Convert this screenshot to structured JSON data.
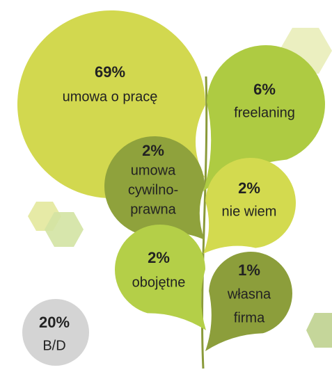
{
  "items": [
    {
      "value": "69%",
      "lines": [
        "umowa o pracę"
      ]
    },
    {
      "value": "6%",
      "lines": [
        "freelaning"
      ]
    },
    {
      "value": "2%",
      "lines": [
        "umowa",
        "cywilno-",
        "prawna"
      ]
    },
    {
      "value": "2%",
      "lines": [
        "nie wiem"
      ]
    },
    {
      "value": "2%",
      "lines": [
        "obojętne"
      ]
    },
    {
      "value": "1%",
      "lines": [
        "własna",
        "firma"
      ]
    },
    {
      "value": "20%",
      "lines": [
        "B/D"
      ]
    }
  ]
}
